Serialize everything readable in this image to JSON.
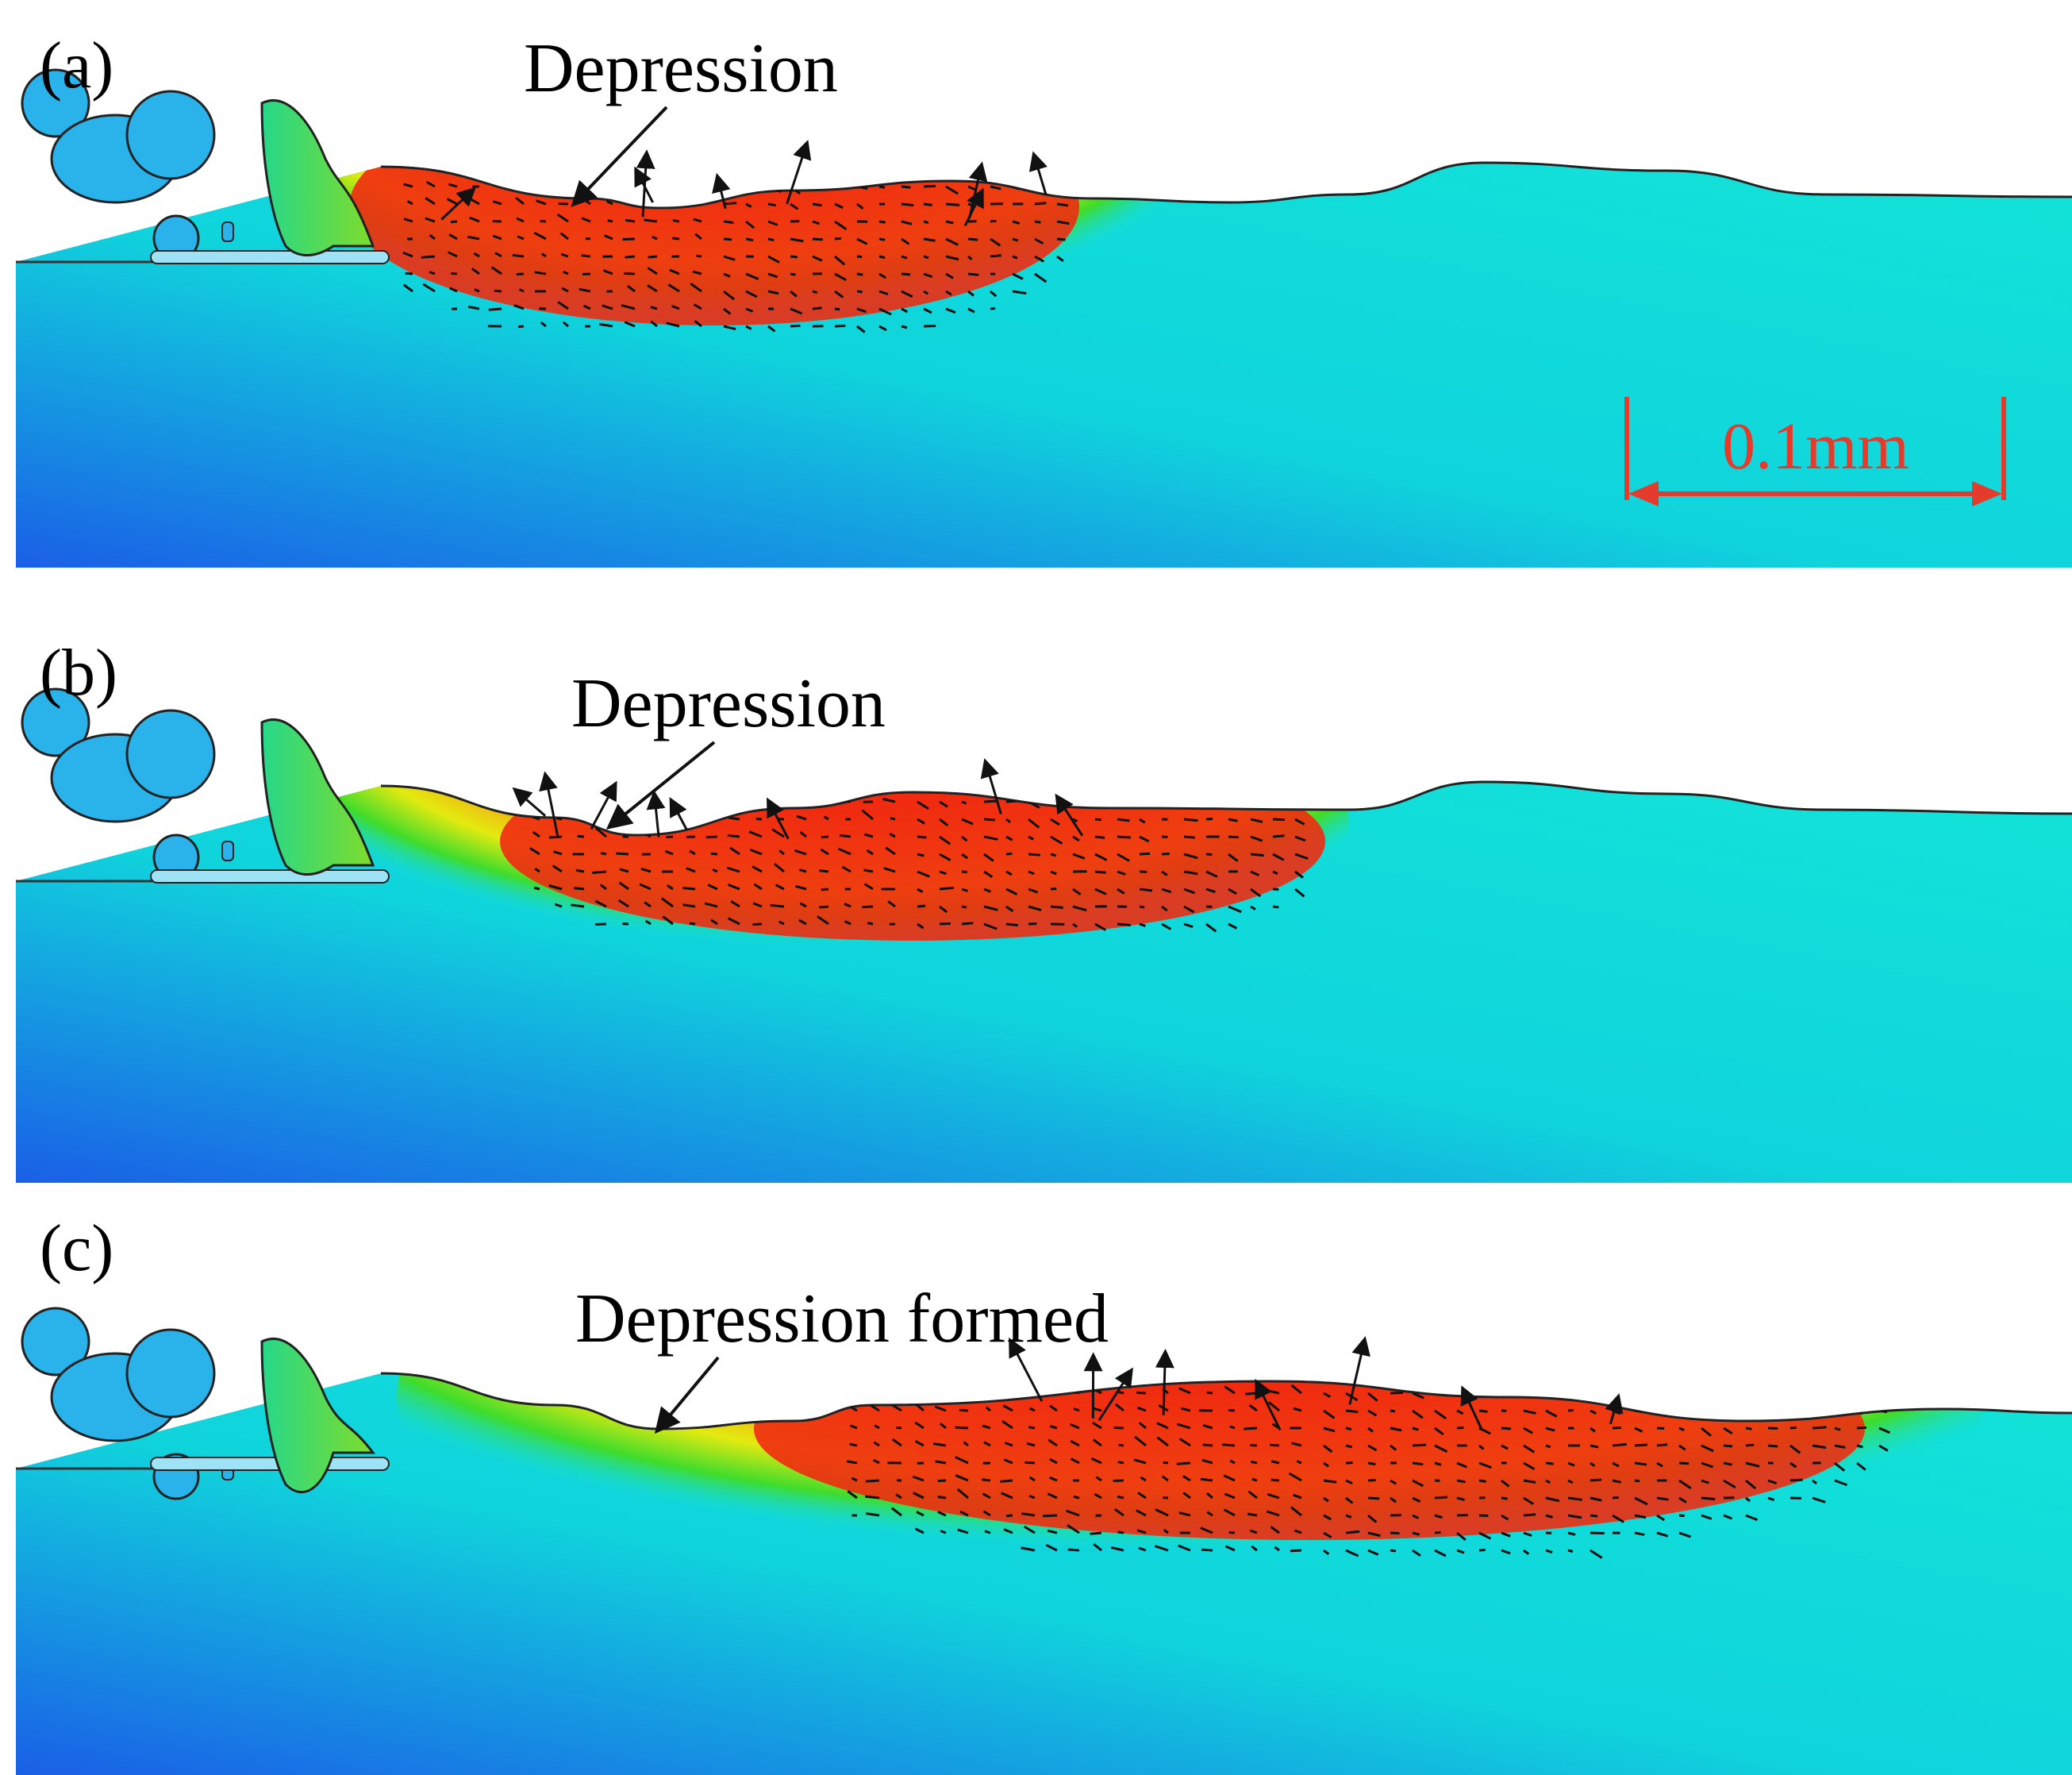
{
  "colors": {
    "substrate_top": "#0fd7d6",
    "substrate_deep": "#1a6fe8",
    "melt_core": "#f02a12",
    "melt_edge_yellow": "#e9e60f",
    "melt_edge_green": "#34d82c",
    "powder": "#2ab2ea",
    "arrow": "#111111",
    "scale_bar": "#e53b2c"
  },
  "panels": [
    {
      "label": "(a)",
      "annotation": "Depression",
      "melt_peak_fraction": 0.55
    },
    {
      "label": "(b)",
      "annotation": "Depression",
      "melt_peak_fraction": 0.6
    },
    {
      "label": "(c)",
      "annotation": "Depression formed",
      "melt_peak_fraction": 0.7
    }
  ],
  "scale_bar": {
    "label": "0.1mm",
    "length_mm": 0.1
  },
  "icons": {
    "flow_vector": "arrow-icon",
    "powder_particle": "powder-particle-icon"
  }
}
